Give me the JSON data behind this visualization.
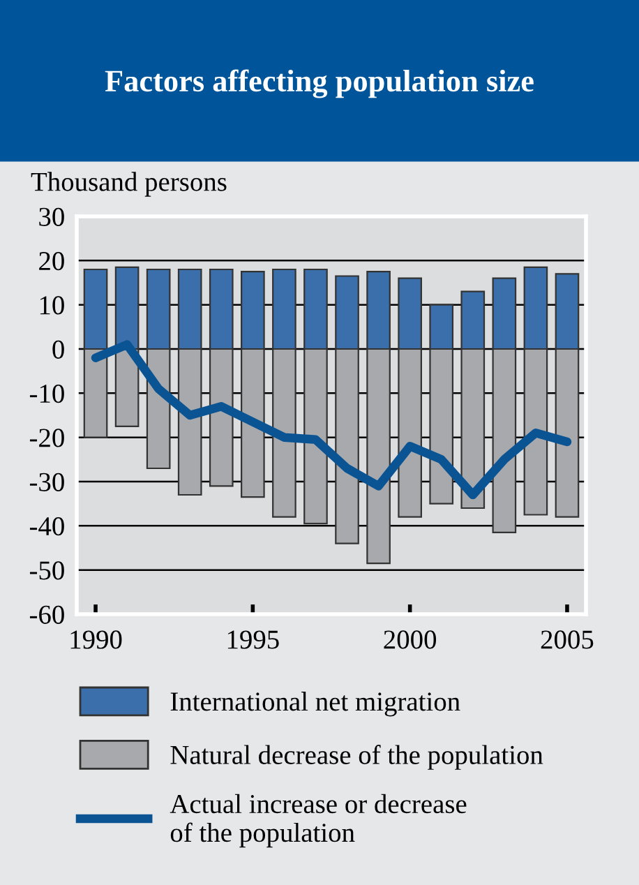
{
  "chart_data": {
    "type": "bar",
    "title": "Factors affecting population size",
    "ylabel": "Thousand persons",
    "categories": [
      "1990",
      null,
      null,
      null,
      null,
      "1995",
      null,
      null,
      null,
      null,
      "2000",
      null,
      null,
      null,
      null,
      "2005"
    ],
    "stacked": true,
    "series": [
      {
        "name": "International net migration",
        "color": "#3a6fab",
        "values": [
          18,
          18.5,
          18,
          18,
          18,
          17.5,
          18,
          18,
          16.5,
          17.5,
          16,
          10,
          13,
          16,
          18.5,
          17
        ]
      },
      {
        "name": "Natural decrease of the population",
        "color": "#a8a9ad",
        "values": [
          -20,
          -17.5,
          -27,
          -33,
          -31,
          -33.5,
          -38,
          -39.5,
          -44,
          -48.5,
          -38,
          -35,
          -36,
          -41.5,
          -37.5,
          -38
        ]
      },
      {
        "name": "Actual increase or decrease\nof the population",
        "type": "line",
        "color": "#0b5494",
        "values": [
          -2,
          1,
          -9,
          -15,
          -13,
          -16.5,
          -20,
          -20.5,
          -27,
          -31,
          -22,
          -25,
          -33,
          -25,
          -19,
          -21
        ]
      }
    ],
    "ylim": [
      -60,
      30
    ],
    "yticks": [
      -60,
      -50,
      -40,
      -30,
      -20,
      -10,
      0,
      10,
      20,
      30
    ],
    "grid": "y",
    "legend": "bottom"
  }
}
